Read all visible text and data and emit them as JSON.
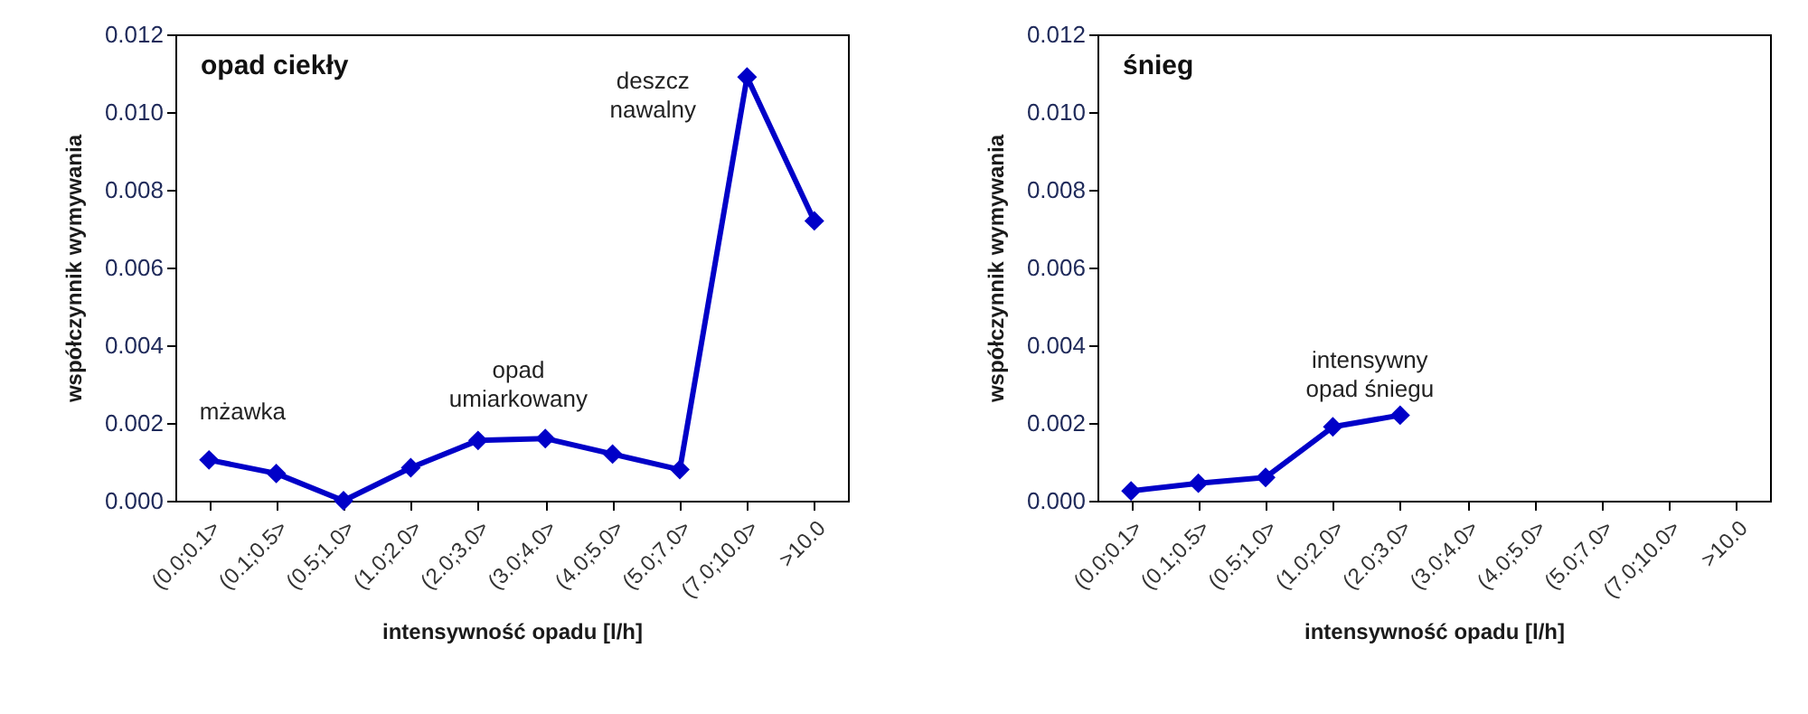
{
  "chart_data": [
    {
      "type": "line",
      "title": "opad ciekły",
      "xlabel": "intensywność opadu [l/h]",
      "ylabel": "współczynnik wymywania",
      "categories": [
        "(0.0;0.1>",
        "(0.1;0.5>",
        "(0.5;1.0>",
        "(1.0;2.0>",
        "(2.0;3.0>",
        "(3.0;4.0>",
        "(4.0;5.0>",
        "(5.0;7.0>",
        "(7.0;10.0>",
        ">10.0"
      ],
      "series": [
        {
          "color": "#0000c8",
          "values": [
            0.00105,
            0.0007,
            0.0,
            0.00085,
            0.00155,
            0.0016,
            0.0012,
            0.0008,
            0.0109,
            0.0072
          ]
        }
      ],
      "ylim": [
        0,
        0.012
      ],
      "yticks": [
        {
          "value": 0,
          "label": "0.000"
        },
        {
          "value": 0.002,
          "label": "0.002"
        },
        {
          "value": 0.004,
          "label": "0.004"
        },
        {
          "value": 0.006,
          "label": "0.006"
        },
        {
          "value": 0.008,
          "label": "0.008"
        },
        {
          "value": 0.01,
          "label": "0.010"
        },
        {
          "value": 0.012,
          "label": "0.012"
        }
      ],
      "marker": "diamond",
      "grid": false,
      "annotations": [
        "mżawka",
        "opad\numiarkowany",
        "deszcz\nnawalny"
      ]
    },
    {
      "type": "line",
      "title": "śnieg",
      "xlabel": "intensywność opadu [l/h]",
      "ylabel": "współczynnik wymywania",
      "categories": [
        "(0.0;0.1>",
        "(0.1;0.5>",
        "(0.5;1.0>",
        "(1.0;2.0>",
        "(2.0;3.0>",
        "(3.0;4.0>",
        "(4.0;5.0>",
        "(5.0;7.0>",
        "(7.0;10.0>",
        ">10.0"
      ],
      "series": [
        {
          "color": "#0000c8",
          "values": [
            0.00025,
            0.00045,
            0.0006,
            0.0019,
            0.0022,
            null,
            null,
            null,
            null,
            null
          ]
        }
      ],
      "ylim": [
        0,
        0.012
      ],
      "yticks": [
        {
          "value": 0,
          "label": "0.000"
        },
        {
          "value": 0.002,
          "label": "0.002"
        },
        {
          "value": 0.004,
          "label": "0.004"
        },
        {
          "value": 0.006,
          "label": "0.006"
        },
        {
          "value": 0.008,
          "label": "0.008"
        },
        {
          "value": 0.01,
          "label": "0.010"
        },
        {
          "value": 0.012,
          "label": "0.012"
        }
      ],
      "marker": "diamond",
      "grid": false,
      "annotations": [
        "intensywny\nopad śniegu"
      ]
    }
  ]
}
